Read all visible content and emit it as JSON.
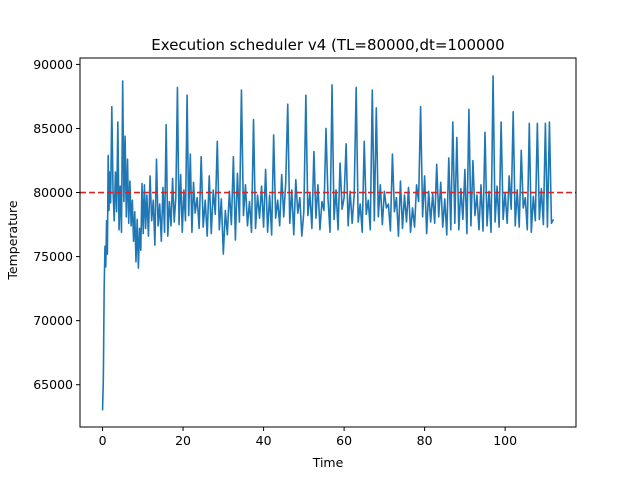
{
  "chart_data": {
    "type": "line",
    "title": "Execution scheduler v4 (TL=80000,dt=100000",
    "xlabel": "Time",
    "ylabel": "Temperature",
    "xlim": [
      -5.6,
      117.6
    ],
    "ylim": [
      61700,
      90500
    ],
    "xticks": [
      0,
      20,
      40,
      60,
      80,
      100
    ],
    "yticks": [
      65000,
      70000,
      75000,
      80000,
      85000,
      90000
    ],
    "grid": false,
    "reference_line": {
      "y": 80000,
      "style": "dashed",
      "color": "#d62728"
    },
    "series": [
      {
        "color": "#1f77b4",
        "x": [
          0.0,
          0.2,
          0.4,
          0.6,
          0.8,
          1.0,
          1.2,
          1.4,
          1.6,
          1.8,
          2.0,
          2.3,
          2.6,
          2.9,
          3.2,
          3.5,
          3.8,
          4.1,
          4.4,
          4.7,
          5.0,
          5.3,
          5.6,
          5.9,
          6.2,
          6.5,
          6.8,
          7.1,
          7.4,
          7.7,
          8.0,
          8.3,
          8.6,
          8.9,
          9.2,
          9.5,
          9.8,
          10.1,
          10.4,
          10.7,
          11.0,
          11.4,
          11.8,
          12.2,
          12.6,
          13.0,
          13.4,
          13.8,
          14.2,
          14.6,
          15.0,
          15.4,
          15.8,
          16.2,
          16.6,
          17.0,
          17.4,
          17.8,
          18.2,
          18.6,
          19.0,
          19.4,
          19.8,
          20.2,
          20.6,
          21.0,
          21.4,
          21.8,
          22.2,
          22.6,
          23.0,
          23.5,
          24.0,
          24.5,
          25.0,
          25.5,
          26.0,
          26.5,
          27.0,
          27.5,
          28.0,
          28.5,
          29.0,
          29.5,
          30.0,
          30.5,
          31.0,
          31.5,
          32.0,
          32.5,
          33.0,
          33.5,
          34.0,
          34.5,
          35.0,
          35.5,
          36.0,
          36.5,
          37.0,
          37.5,
          38.0,
          38.5,
          39.0,
          39.5,
          40.0,
          40.5,
          41.0,
          41.5,
          42.0,
          42.5,
          43.0,
          43.5,
          44.0,
          44.5,
          45.0,
          45.5,
          46.0,
          46.5,
          47.0,
          47.5,
          48.0,
          48.5,
          49.0,
          49.5,
          50.0,
          50.5,
          51.0,
          51.5,
          52.0,
          52.5,
          53.0,
          53.5,
          54.0,
          54.5,
          55.0,
          55.5,
          56.0,
          56.5,
          57.0,
          57.5,
          58.0,
          58.5,
          59.0,
          59.5,
          60.0,
          60.5,
          61.0,
          61.5,
          62.0,
          62.5,
          63.0,
          63.5,
          64.0,
          64.5,
          65.0,
          65.5,
          66.0,
          66.5,
          67.0,
          67.5,
          68.0,
          68.5,
          69.0,
          69.5,
          70.0,
          70.5,
          71.0,
          71.5,
          72.0,
          72.5,
          73.0,
          73.5,
          74.0,
          74.5,
          75.0,
          75.5,
          76.0,
          76.5,
          77.0,
          77.5,
          78.0,
          78.5,
          79.0,
          79.5,
          80.0,
          80.5,
          81.0,
          81.5,
          82.0,
          82.5,
          83.0,
          83.5,
          84.0,
          84.5,
          85.0,
          85.5,
          86.0,
          86.5,
          87.0,
          87.5,
          88.0,
          88.5,
          89.0,
          89.5,
          90.0,
          90.5,
          91.0,
          91.5,
          92.0,
          92.5,
          93.0,
          93.5,
          94.0,
          94.5,
          95.0,
          95.5,
          96.0,
          96.5,
          97.0,
          97.5,
          98.0,
          98.5,
          99.0,
          99.5,
          100.0,
          100.5,
          101.0,
          101.5,
          102.0,
          102.5,
          103.0,
          103.5,
          104.0,
          104.5,
          105.0,
          105.5,
          106.0,
          106.5,
          107.0,
          107.5,
          108.0,
          108.5,
          109.0,
          109.5,
          110.0,
          110.5,
          111.0,
          111.5,
          112.0
        ],
        "y": [
          63000,
          65500,
          72500,
          75800,
          74200,
          77800,
          75200,
          82900,
          78600,
          81600,
          79200,
          86700,
          80200,
          77800,
          81600,
          78500,
          85500,
          77100,
          80500,
          76900,
          88700,
          79300,
          84400,
          78100,
          82600,
          77600,
          80900,
          77400,
          79400,
          76200,
          78500,
          74600,
          77900,
          74100,
          77200,
          75500,
          80700,
          76800,
          80600,
          77200,
          79800,
          76600,
          81300,
          77800,
          79400,
          75900,
          82600,
          77400,
          79100,
          76200,
          80400,
          76900,
          85300,
          76600,
          79300,
          77400,
          81100,
          77700,
          79600,
          88200,
          77500,
          81400,
          76900,
          80200,
          77800,
          87600,
          78200,
          83000,
          76900,
          80800,
          78400,
          79600,
          77200,
          82800,
          77300,
          79400,
          76600,
          81300,
          76800,
          80200,
          78300,
          84000,
          77100,
          79500,
          75200,
          78600,
          76700,
          80100,
          77500,
          82800,
          76300,
          81500,
          77700,
          88000,
          78200,
          80600,
          77400,
          79300,
          76900,
          85700,
          77200,
          79800,
          78000,
          80500,
          77300,
          81800,
          76900,
          79800,
          76700,
          84500,
          78000,
          79400,
          77400,
          81400,
          78100,
          80800,
          86900,
          77600,
          80200,
          76700,
          81000,
          78400,
          79600,
          76600,
          78500,
          87600,
          78200,
          79900,
          77200,
          83200,
          78000,
          80600,
          77100,
          79300,
          78600,
          85000,
          79500,
          76900,
          88400,
          77900,
          80200,
          77100,
          82300,
          78700,
          79600,
          83800,
          77400,
          80100,
          77600,
          79800,
          88200,
          77700,
          79100,
          76900,
          84000,
          78300,
          79400,
          77100,
          88000,
          77800,
          86600,
          78100,
          80600,
          77500,
          80100,
          78800,
          79100,
          77000,
          83000,
          78500,
          79600,
          76600,
          80900,
          77200,
          79800,
          77700,
          80400,
          76900,
          78800,
          77300,
          80600,
          79300,
          86700,
          78100,
          81300,
          76800,
          80100,
          77700,
          79900,
          77600,
          82200,
          78100,
          80800,
          77300,
          79500,
          76700,
          82700,
          77100,
          85500,
          77600,
          84300,
          77100,
          80300,
          77900,
          81800,
          76800,
          86500,
          77400,
          82500,
          78200,
          79800,
          77100,
          80600,
          77000,
          84700,
          77400,
          80100,
          76900,
          89100,
          77700,
          80500,
          77300,
          85500,
          77900,
          80000,
          77600,
          81300,
          78700,
          86300,
          77400,
          80200,
          77300,
          83300,
          78800,
          79600,
          77100,
          85400,
          76900,
          79700,
          77800,
          85400,
          77900,
          80300,
          77500,
          85400,
          77300,
          85500,
          77600,
          77900
        ]
      }
    ]
  }
}
